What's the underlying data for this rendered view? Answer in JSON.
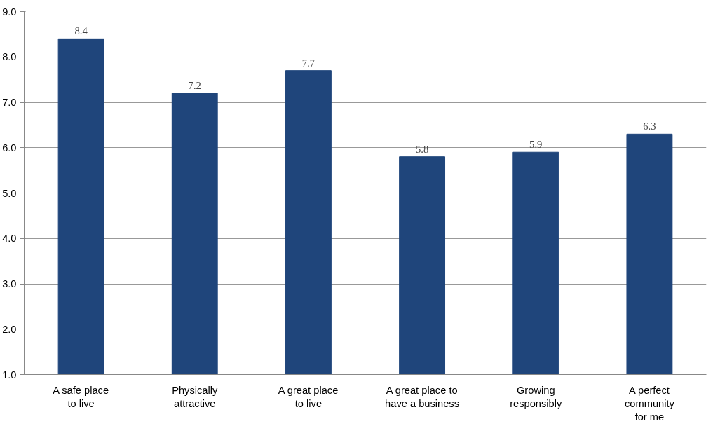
{
  "chart_data": {
    "type": "bar",
    "categories": [
      "A safe place\nto live",
      "Physically\nattractive",
      "A great place\nto live",
      "A great place to\nhave a business",
      "Growing\nresponsibly",
      "A perfect\ncommunity\nfor me"
    ],
    "values": [
      8.4,
      7.2,
      7.7,
      5.8,
      5.9,
      6.3
    ],
    "color": "#1f457b",
    "ylim": [
      1,
      9
    ],
    "yticks": [
      {
        "value": 1,
        "label": "1.0"
      },
      {
        "value": 2,
        "label": "2.0"
      },
      {
        "value": 3,
        "label": "3.0"
      },
      {
        "value": 4,
        "label": "4.0"
      },
      {
        "value": 5,
        "label": "5.0"
      },
      {
        "value": 6,
        "label": "6.0"
      },
      {
        "value": 7,
        "label": "7.0"
      },
      {
        "value": 8,
        "label": "8.0"
      },
      {
        "value": 9,
        "label": "9.0"
      }
    ],
    "grid": "y",
    "data_labels": true
  }
}
